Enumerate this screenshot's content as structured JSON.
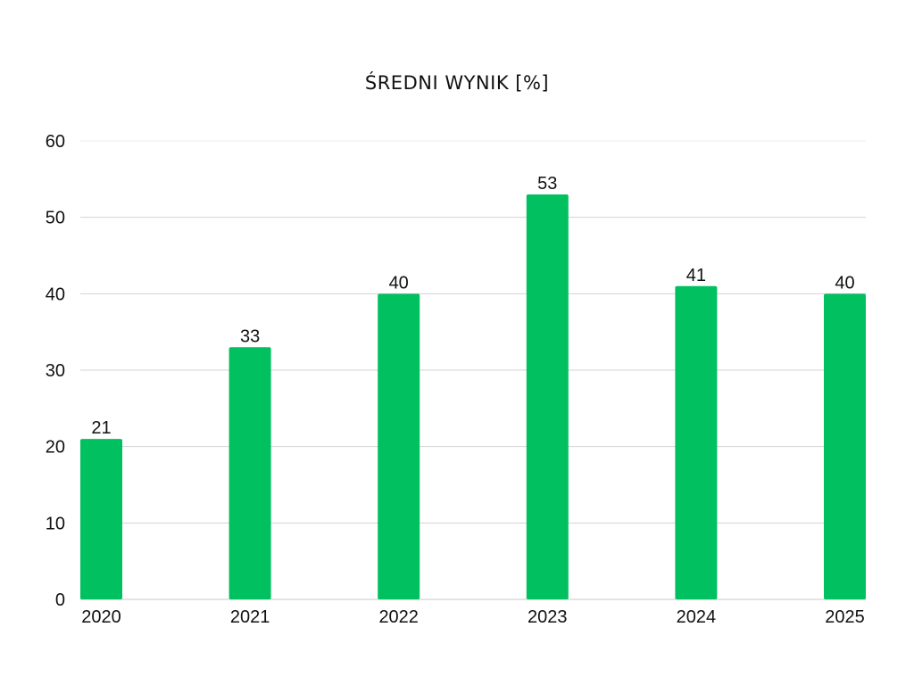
{
  "chart_data": {
    "type": "bar",
    "title": "ŚREDNI WYNIK [%]",
    "xlabel": "",
    "ylabel": "",
    "categories": [
      "2020",
      "2021",
      "2022",
      "2023",
      "2024",
      "2025"
    ],
    "values": [
      21,
      33,
      40,
      53,
      41,
      40
    ],
    "ylim": [
      0,
      60
    ],
    "yticks": [
      0,
      10,
      20,
      30,
      40,
      50,
      60
    ],
    "grid": true,
    "legend": "none",
    "bar_color": "#00c060",
    "show_data_labels": true
  }
}
